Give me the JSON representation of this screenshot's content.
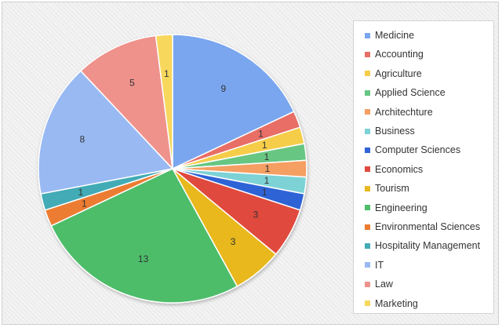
{
  "chart_data": {
    "type": "pie",
    "title": "",
    "categories": [
      "Medicine",
      "Accounting",
      "Agriculture",
      "Applied Science",
      "Architechture",
      "Business",
      "Computer Sciences",
      "Economics",
      "Tourism",
      "Engineering",
      "Environmental Sciences",
      "Hospitality Management",
      "IT",
      "Law",
      "Marketing"
    ],
    "values": [
      9,
      1,
      1,
      1,
      1,
      1,
      1,
      3,
      3,
      13,
      1,
      1,
      8,
      5,
      1
    ],
    "colors": [
      "#7aa6ef",
      "#e86e66",
      "#f5cd48",
      "#67c683",
      "#f59f63",
      "#7dd2d6",
      "#2f63d6",
      "#e04a3d",
      "#e8b81f",
      "#4dbd6a",
      "#ec7c30",
      "#43abb5",
      "#99b9f3",
      "#ef928c",
      "#f7d75c"
    ],
    "legend_position": "right",
    "start_angle_deg": 0,
    "direction": "clockwise"
  }
}
